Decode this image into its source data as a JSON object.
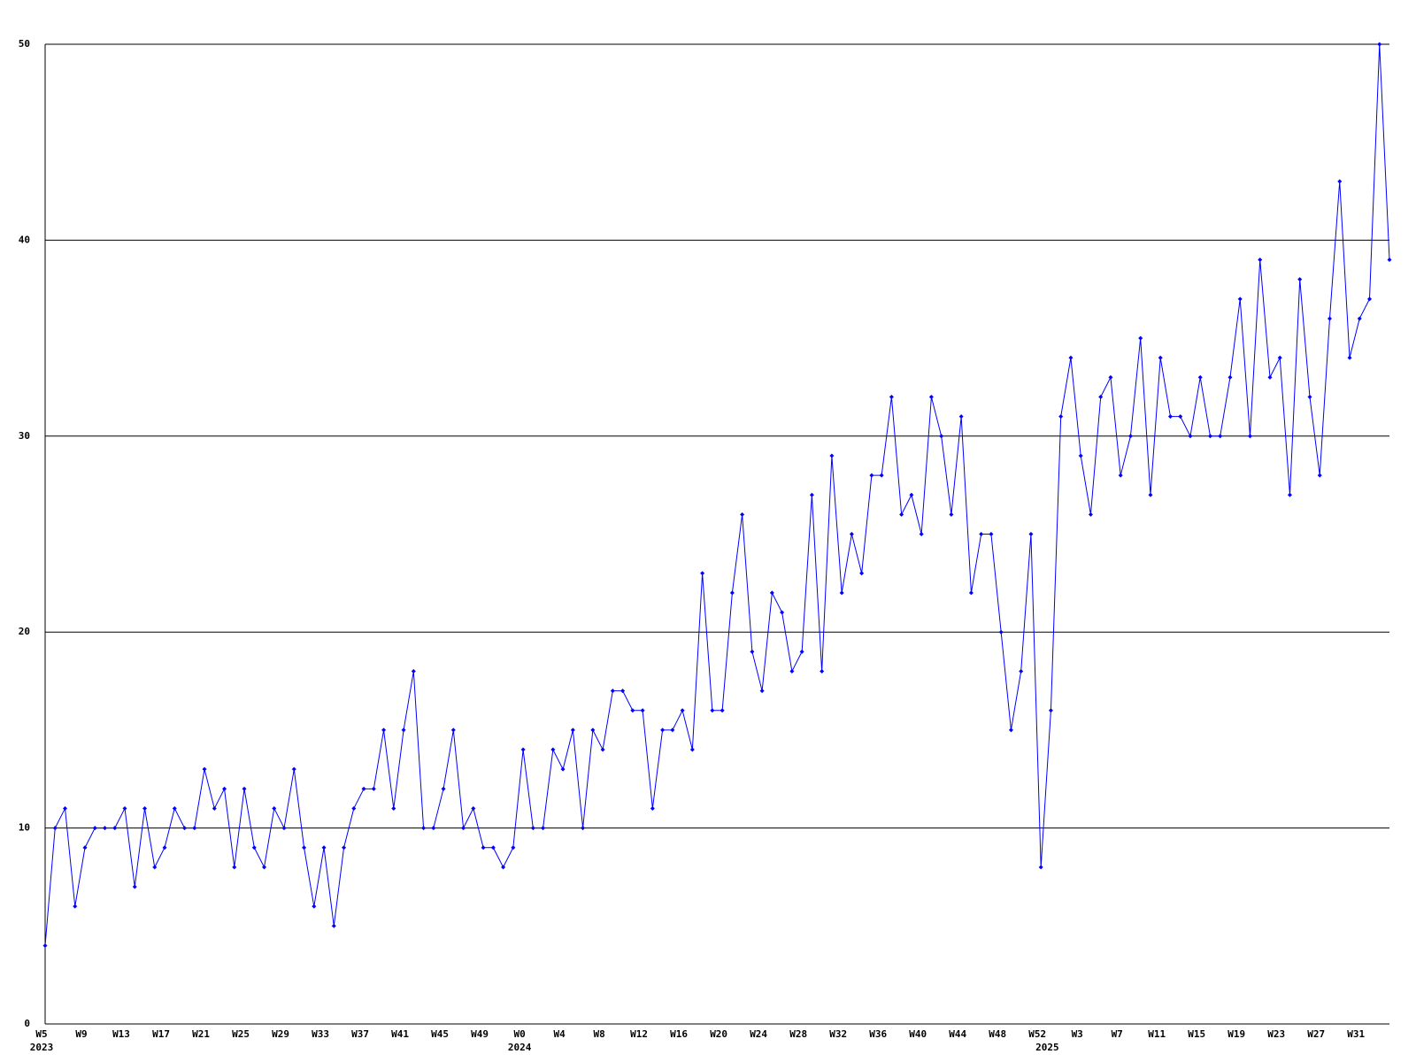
{
  "chart_data": {
    "type": "line",
    "ylim": [
      0,
      50
    ],
    "yticks": [
      0,
      10,
      20,
      30,
      40,
      50
    ],
    "grid": true,
    "categories": [
      "W5",
      null,
      null,
      null,
      "W9",
      null,
      null,
      null,
      "W13",
      null,
      null,
      null,
      "W17",
      null,
      null,
      null,
      "W21",
      null,
      null,
      null,
      "W25",
      null,
      null,
      null,
      "W29",
      null,
      null,
      null,
      "W33",
      null,
      null,
      null,
      "W37",
      null,
      null,
      null,
      "W41",
      null,
      null,
      null,
      "W45",
      null,
      null,
      null,
      "W49",
      null,
      null,
      null,
      "W0",
      null,
      null,
      null,
      "W4",
      null,
      null,
      null,
      "W8",
      null,
      null,
      null,
      "W12",
      null,
      null,
      null,
      "W16",
      null,
      null,
      null,
      "W20",
      null,
      null,
      null,
      "W24",
      null,
      null,
      null,
      "W28",
      null,
      null,
      null,
      "W32",
      null,
      null,
      null,
      "W36",
      null,
      null,
      null,
      "W40",
      null,
      null,
      null,
      "W44",
      null,
      null,
      null,
      "W48",
      null,
      null,
      null,
      "W52",
      null,
      null,
      null,
      "W3",
      null,
      null,
      null,
      "W7",
      null,
      null,
      null,
      "W11",
      null,
      null,
      null,
      "W15",
      null,
      null,
      null,
      "W19",
      null,
      null,
      null,
      "W23",
      null,
      null,
      null,
      "W27",
      null,
      null,
      null,
      "W31",
      null,
      null,
      null
    ],
    "category_years": [
      "2023",
      null,
      null,
      null,
      null,
      null,
      null,
      null,
      null,
      null,
      null,
      null,
      null,
      null,
      null,
      null,
      null,
      null,
      null,
      null,
      null,
      null,
      null,
      null,
      null,
      null,
      null,
      null,
      null,
      null,
      null,
      null,
      null,
      null,
      null,
      null,
      null,
      null,
      null,
      null,
      null,
      null,
      null,
      null,
      null,
      null,
      null,
      null,
      "2024",
      null,
      null,
      null,
      null,
      null,
      null,
      null,
      null,
      null,
      null,
      null,
      null,
      null,
      null,
      null,
      null,
      null,
      null,
      null,
      null,
      null,
      null,
      null,
      null,
      null,
      null,
      null,
      null,
      null,
      null,
      null,
      null,
      null,
      null,
      null,
      null,
      null,
      null,
      null,
      null,
      null,
      null,
      null,
      null,
      null,
      null,
      null,
      null,
      null,
      null,
      null,
      null,
      "2025",
      null,
      null,
      null,
      null,
      null,
      null,
      null,
      null,
      null,
      null,
      null,
      null,
      null,
      null,
      null,
      null,
      null,
      null,
      null,
      null,
      null,
      null,
      null,
      null,
      null,
      null,
      null,
      null,
      null,
      null,
      null,
      null,
      null,
      null
    ],
    "series": [
      {
        "color": "#0000ff",
        "values": [
          4,
          10,
          11,
          6,
          9,
          10,
          10,
          10,
          11,
          7,
          11,
          8,
          9,
          11,
          10,
          10,
          13,
          11,
          12,
          8,
          12,
          9,
          8,
          11,
          10,
          13,
          9,
          6,
          9,
          5,
          9,
          11,
          12,
          12,
          15,
          11,
          15,
          18,
          10,
          10,
          12,
          15,
          10,
          11,
          9,
          9,
          8,
          9,
          14,
          10,
          10,
          14,
          13,
          15,
          10,
          15,
          14,
          17,
          17,
          16,
          16,
          11,
          15,
          15,
          16,
          14,
          23,
          16,
          16,
          22,
          26,
          19,
          17,
          22,
          21,
          18,
          19,
          27,
          18,
          29,
          22,
          25,
          23,
          28,
          28,
          32,
          26,
          27,
          25,
          32,
          30,
          26,
          31,
          22,
          25,
          25,
          20,
          15,
          18,
          25,
          8,
          16,
          31,
          34,
          29,
          26,
          32,
          33,
          28,
          30,
          35,
          27,
          34,
          31,
          31,
          30,
          33,
          30,
          30,
          33,
          37,
          30,
          39,
          33,
          34,
          27,
          38,
          32,
          28,
          36,
          43,
          34,
          36,
          37,
          50,
          39
        ]
      }
    ]
  }
}
